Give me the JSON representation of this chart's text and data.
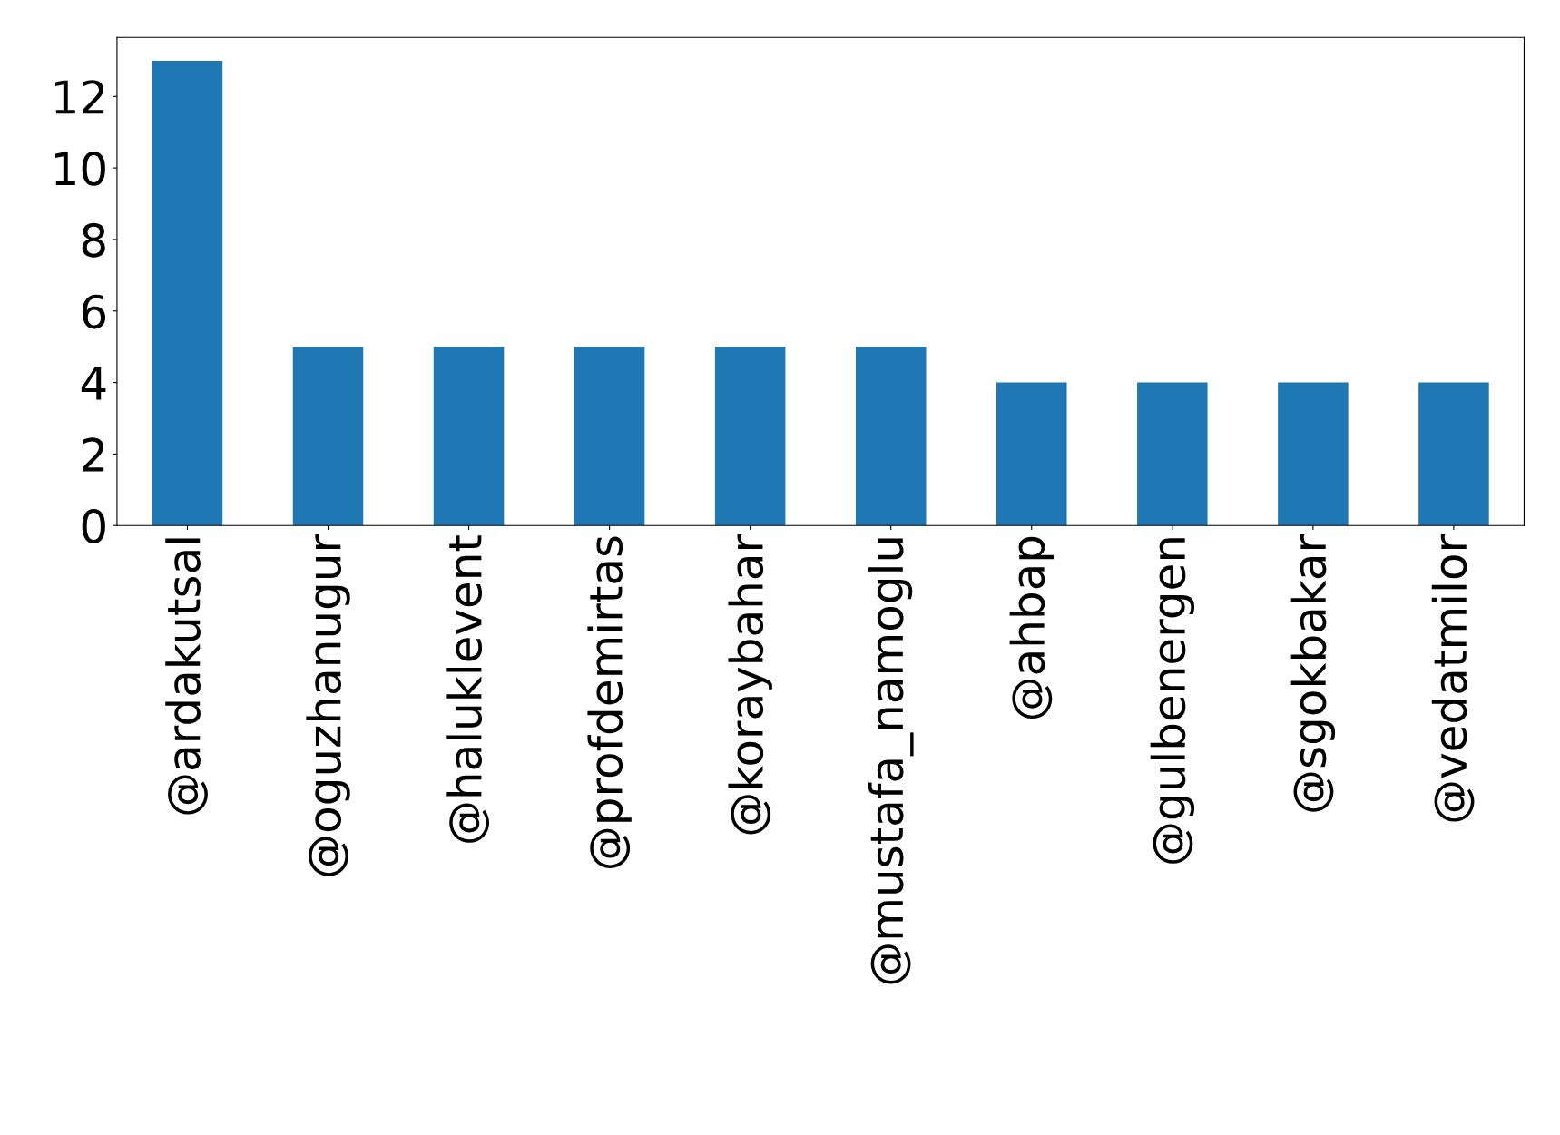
{
  "chart_data": {
    "type": "bar",
    "categories": [
      "@ardakutsal",
      "@oguzhanugur",
      "@haluklevent",
      "@profdemirtas",
      "@koraybahar",
      "@mustafa_namoglu",
      "@ahbap",
      "@gulbenergen",
      "@sgokbakar",
      "@vedatmilor"
    ],
    "values": [
      13,
      5,
      5,
      5,
      5,
      5,
      4,
      4,
      4,
      4
    ],
    "color": "#1f77b4",
    "ylim": [
      0,
      13.65
    ],
    "yticks": [
      0,
      2,
      4,
      6,
      8,
      10,
      12
    ],
    "grid": false,
    "legend": false
  }
}
